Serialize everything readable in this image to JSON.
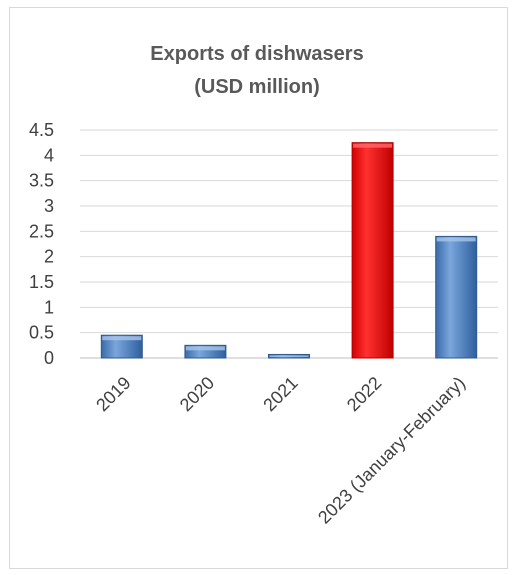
{
  "chart_data": {
    "type": "bar",
    "title": [
      "Exports of dishwasers",
      "(USD million)"
    ],
    "categories": [
      "2019",
      "2020",
      "2021",
      "2022",
      "2023 (January-February)"
    ],
    "values": [
      0.45,
      0.25,
      0.07,
      4.25,
      2.4
    ],
    "bar_colors": [
      "#4f81bd",
      "#4f81bd",
      "#4f81bd",
      "#ff0000",
      "#4f81bd"
    ],
    "yticks": [
      "0",
      "0.5",
      "1",
      "1.5",
      "2",
      "2.5",
      "3",
      "3.5",
      "4",
      "4.5"
    ],
    "ylim": [
      0,
      4.5
    ],
    "grid": true,
    "legend": "none"
  }
}
